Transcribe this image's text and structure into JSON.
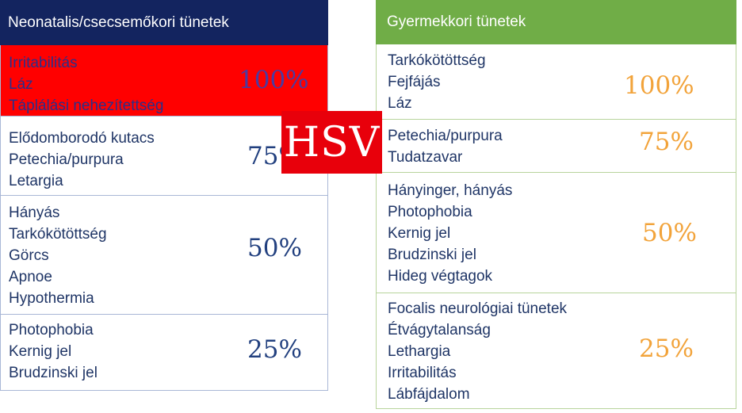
{
  "left": {
    "title": "Neonatalis/csecsemőkori tünetek",
    "groups": [
      {
        "items": [
          "Irritabilitás",
          "Láz",
          "Táplálási nehezítettség"
        ],
        "percent": "100%"
      },
      {
        "items": [
          "Elődomborodó kutacs",
          "Petechia/purpura",
          "Letargia"
        ],
        "percent": "75%"
      },
      {
        "items": [
          "Hányás",
          "Tarkókötöttség",
          "Görcs",
          "Apnoe",
          "Hypothermia"
        ],
        "percent": "50%"
      },
      {
        "items": [
          "Photophobia",
          "Kernig jel",
          "Brudzinski jel"
        ],
        "percent": "25%"
      }
    ]
  },
  "right": {
    "title": "Gyermekkori tünetek",
    "groups": [
      {
        "items": [
          "Tarkókötöttség",
          "Fejfájás",
          "Láz"
        ],
        "percent": "100%"
      },
      {
        "items": [
          "Petechia/purpura",
          "Tudatzavar"
        ],
        "percent": "75%"
      },
      {
        "items": [
          "Hányinger, hányás",
          "Photophobia",
          "Kernig jel",
          "Brudzinski jel",
          "Hideg végtagok"
        ],
        "percent": "50%"
      },
      {
        "items": [
          "Focalis neurológiai tünetek",
          "Étvágytalanság",
          "Lethargia",
          "Irritabilitás",
          "Lábfájdalom"
        ],
        "percent": "25%"
      }
    ]
  },
  "overlay": {
    "label": "HSV"
  },
  "colors": {
    "left_header": "#13245f",
    "right_header": "#70ad47",
    "highlight": "#ff0000",
    "overlay": "#e8000b",
    "right_percent": "#f2a33a"
  }
}
